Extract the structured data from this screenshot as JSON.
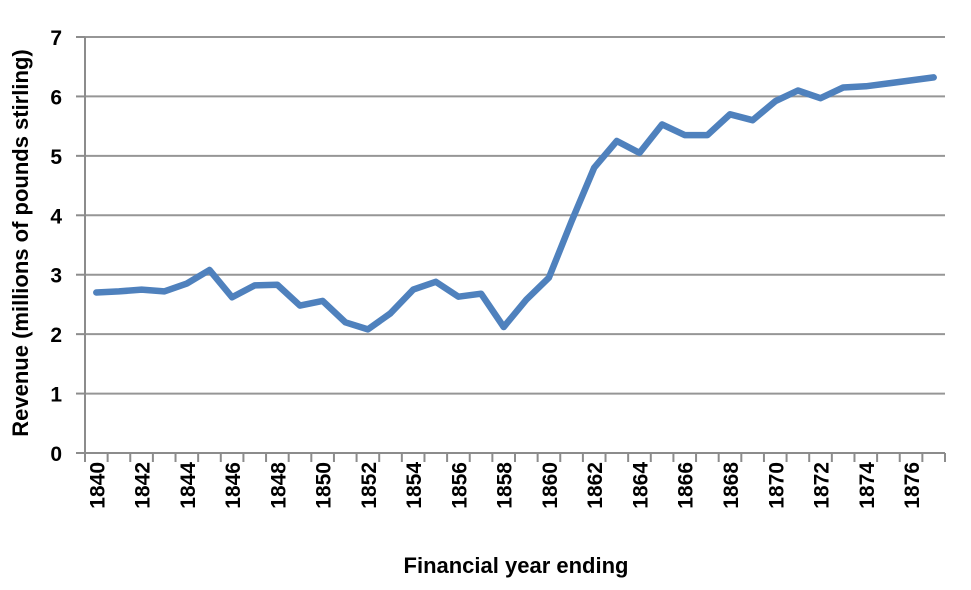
{
  "chart_data": {
    "type": "line",
    "title": "",
    "xlabel": "Financial year ending",
    "ylabel": "Revenue (millions of pounds stirling)",
    "x": [
      1840,
      1841,
      1842,
      1843,
      1844,
      1845,
      1846,
      1847,
      1848,
      1849,
      1850,
      1851,
      1852,
      1853,
      1854,
      1855,
      1856,
      1857,
      1858,
      1859,
      1860,
      1861,
      1862,
      1863,
      1864,
      1865,
      1866,
      1867,
      1868,
      1869,
      1870,
      1871,
      1872,
      1873,
      1874,
      1875,
      1876,
      1877
    ],
    "series": [
      {
        "name": "Revenue",
        "values": [
          2.7,
          2.72,
          2.75,
          2.72,
          2.85,
          3.08,
          2.62,
          2.82,
          2.83,
          2.48,
          2.56,
          2.2,
          2.08,
          2.35,
          2.75,
          2.88,
          2.63,
          2.68,
          2.12,
          2.58,
          2.95,
          3.9,
          4.8,
          5.25,
          5.05,
          5.53,
          5.35,
          5.35,
          5.7,
          5.6,
          5.92,
          6.1,
          5.97,
          6.15,
          6.17,
          6.22,
          6.27,
          6.32
        ]
      }
    ],
    "ylim": [
      0,
      7
    ],
    "ytick_step": 1,
    "ytick_labels": [
      "0",
      "1",
      "2",
      "3",
      "4",
      "5",
      "6",
      "7"
    ],
    "xtick_label_step": 2,
    "xtick_labels": [
      "1840",
      "1842",
      "1844",
      "1846",
      "1848",
      "1850",
      "1852",
      "1854",
      "1856",
      "1858",
      "1860",
      "1862",
      "1864",
      "1866",
      "1868",
      "1870",
      "1872",
      "1874",
      "1876"
    ],
    "grid": "horizontal",
    "legend": "none",
    "x_labels_rotated_degrees": 90,
    "line_color": "#4F81BD",
    "gridline_color": "#969696",
    "axis_color": "#8C8C8C",
    "text_color": "#000000",
    "background": "#FFFFFF"
  }
}
